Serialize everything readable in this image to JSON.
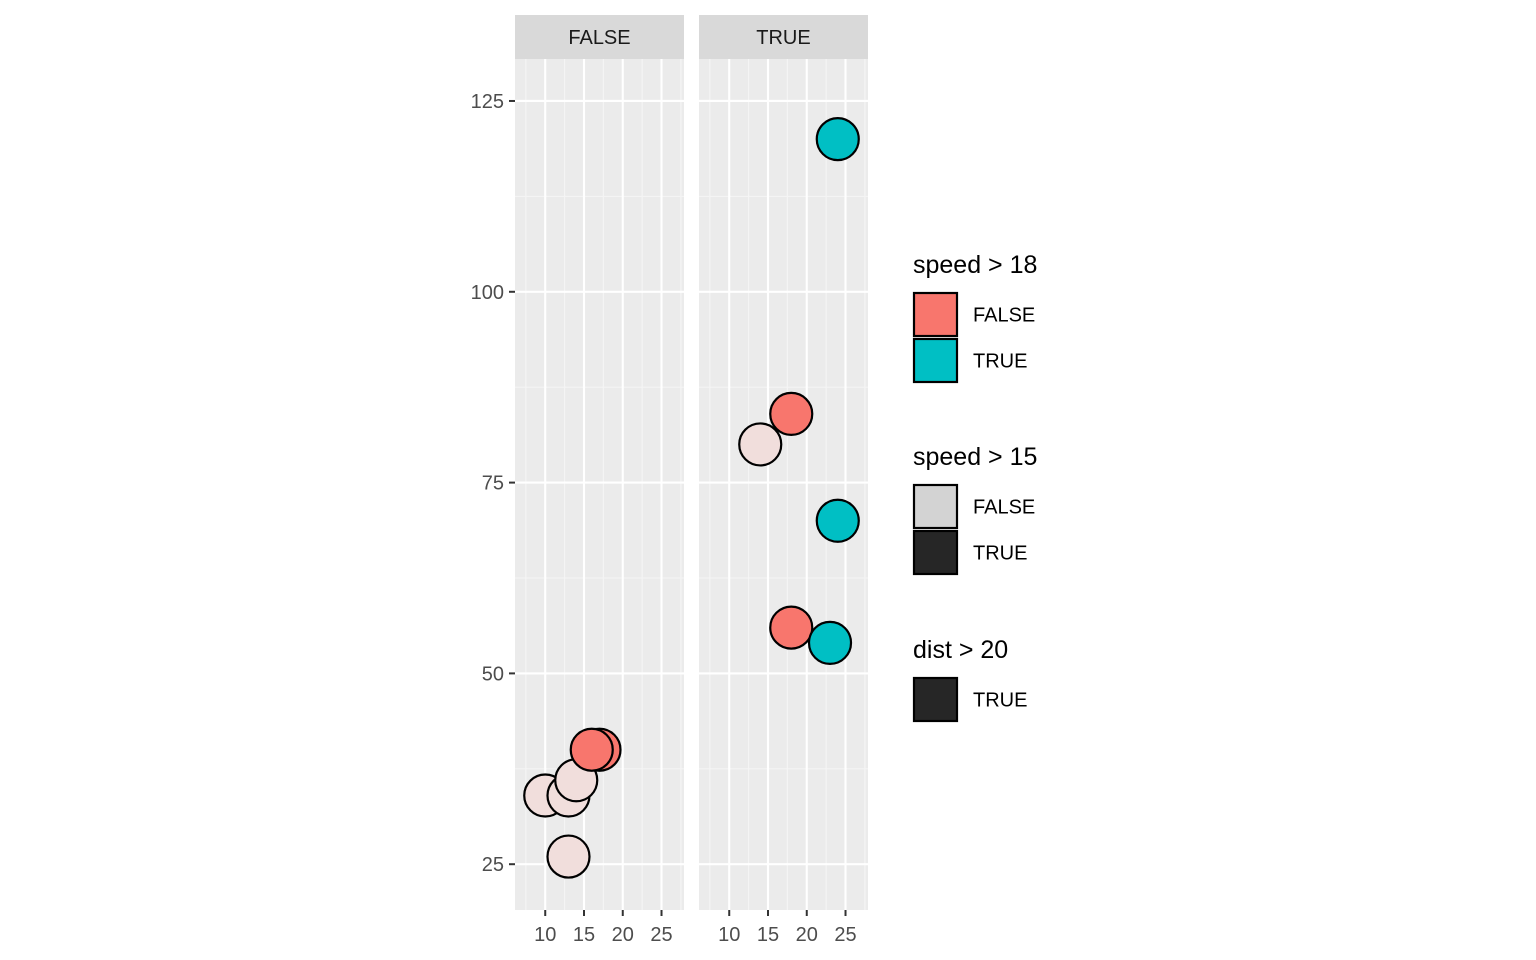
{
  "chart_data": {
    "type": "scatter",
    "facet_by": "dist > 20",
    "panels": [
      {
        "label": "FALSE",
        "points": [
          {
            "x": 10,
            "y": 34,
            "speed_gt_18": false,
            "speed_gt_15": false
          },
          {
            "x": 13,
            "y": 26,
            "speed_gt_18": false,
            "speed_gt_15": false
          },
          {
            "x": 13,
            "y": 34,
            "speed_gt_18": false,
            "speed_gt_15": false
          },
          {
            "x": 14,
            "y": 36,
            "speed_gt_18": false,
            "speed_gt_15": false
          },
          {
            "x": 17,
            "y": 40,
            "speed_gt_18": false,
            "speed_gt_15": true
          },
          {
            "x": 16,
            "y": 40,
            "speed_gt_18": false,
            "speed_gt_15": true
          }
        ]
      },
      {
        "label": "TRUE",
        "points": [
          {
            "x": 14,
            "y": 80,
            "speed_gt_18": false,
            "speed_gt_15": false
          },
          {
            "x": 18,
            "y": 84,
            "speed_gt_18": false,
            "speed_gt_15": true
          },
          {
            "x": 18,
            "y": 56,
            "speed_gt_18": false,
            "speed_gt_15": true
          },
          {
            "x": 23,
            "y": 54,
            "speed_gt_18": true,
            "speed_gt_15": true
          },
          {
            "x": 24,
            "y": 70,
            "speed_gt_18": true,
            "speed_gt_15": true
          },
          {
            "x": 24,
            "y": 120,
            "speed_gt_18": true,
            "speed_gt_15": true
          }
        ]
      }
    ],
    "x_ticks": [
      "10",
      "15",
      "20",
      "25"
    ],
    "x_tick_values": [
      10,
      15,
      20,
      25
    ],
    "y_ticks": [
      "25",
      "50",
      "75",
      "100",
      "125"
    ],
    "y_tick_values": [
      25,
      50,
      75,
      100,
      125
    ],
    "xlim": [
      6.1,
      27.9
    ],
    "ylim": [
      19,
      130.5
    ],
    "xlabel": "",
    "ylabel": "",
    "grid": true,
    "legend_position": "right",
    "legends": [
      {
        "title": "speed > 18",
        "aesthetic": "fill",
        "entries": [
          {
            "label": "FALSE",
            "color": "#F8766D"
          },
          {
            "label": "TRUE",
            "color": "#00BFC4"
          }
        ]
      },
      {
        "title": "speed > 15",
        "aesthetic": "alpha",
        "entries": [
          {
            "label": "FALSE",
            "color": "#d3d3d3"
          },
          {
            "label": "TRUE",
            "color": "#262626"
          }
        ]
      },
      {
        "title": "dist > 20",
        "aesthetic": "alpha",
        "entries": [
          {
            "label": "TRUE",
            "color": "#262626"
          }
        ]
      }
    ],
    "colors": {
      "panel_background": "#ebebeb",
      "strip_background": "#d9d9d9",
      "grid_major": "#ffffff",
      "grid_minor": "#f5f5f5",
      "point_outline": "#000000",
      "faded_fill": "#f1dedc"
    }
  }
}
